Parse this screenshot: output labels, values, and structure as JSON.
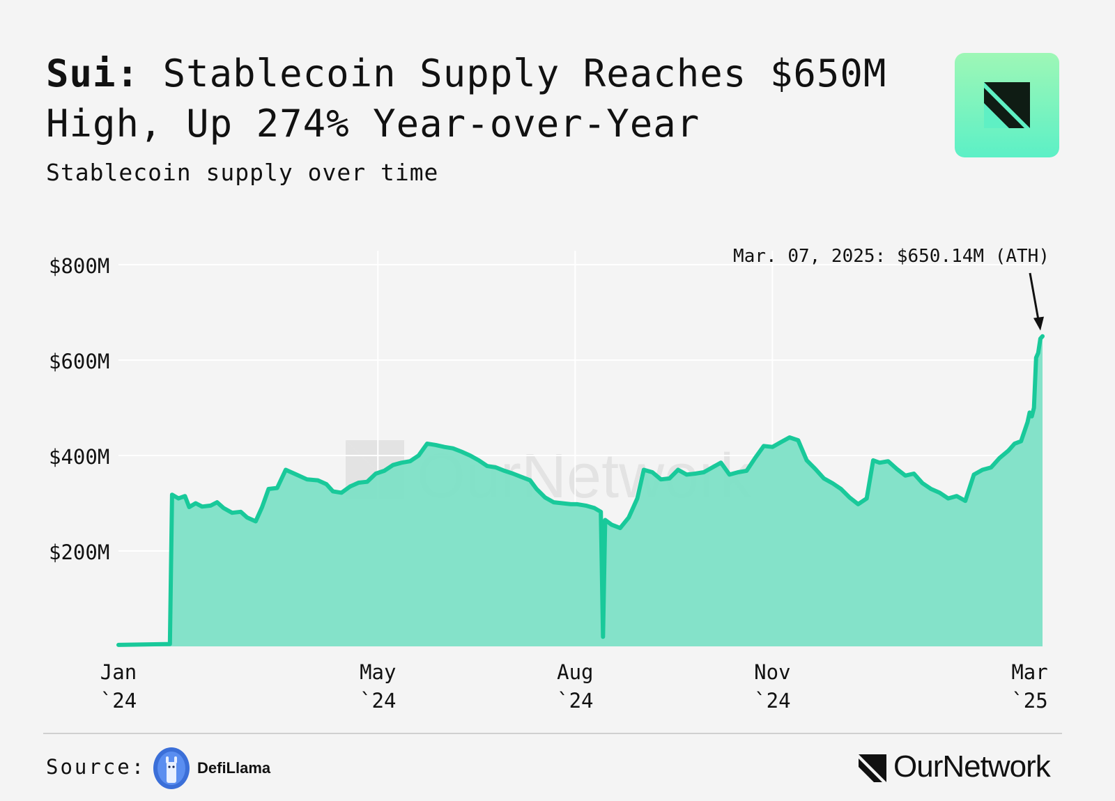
{
  "header": {
    "title_bold": "Sui:",
    "title_rest": "Stablecoin Supply Reaches $650M High, Up 274% Year-over-Year",
    "subtitle": "Stablecoin supply over time"
  },
  "footer": {
    "source_label": "Source:",
    "source_name": "DefiLlama",
    "brand_name": "OurNetwork"
  },
  "watermark": "OurNetwork",
  "icons": {
    "logo_tile": "ournetwork-logo-icon",
    "source": "defillama-llama-icon",
    "brand": "ournetwork-mark-icon"
  },
  "colors": {
    "line": "#19c99a",
    "fill": "#7de0c6",
    "background": "#f4f4f4",
    "grid": "#ffffff",
    "logo_tile": "#7ff5c0"
  },
  "chart_data": {
    "type": "area",
    "x_axis": {
      "min": "2024-01-01",
      "max": "2025-03-07",
      "ticks": [
        {
          "date": "2024-01-01",
          "line1": "Jan",
          "line2": "`24"
        },
        {
          "date": "2024-05-01",
          "line1": "May",
          "line2": "`24"
        },
        {
          "date": "2024-08-01",
          "line1": "Aug",
          "line2": "`24"
        },
        {
          "date": "2024-11-01",
          "line1": "Nov",
          "line2": "`24"
        },
        {
          "date": "2025-03-01",
          "line1": "Mar",
          "line2": "`25"
        }
      ]
    },
    "y_axis": {
      "min": 0,
      "max": 800,
      "unit": "M USD",
      "ticks": [
        {
          "value": 200,
          "label": "$200M"
        },
        {
          "value": 400,
          "label": "$400M"
        },
        {
          "value": 600,
          "label": "$600M"
        },
        {
          "value": 800,
          "label": "$800M"
        }
      ]
    },
    "grid": true,
    "annotation": {
      "text": "Mar. 07, 2025: $650.14M (ATH)",
      "date": "2025-03-07",
      "value": 650.14
    },
    "series": [
      {
        "points": [
          [
            "2024-01-01",
            3
          ],
          [
            "2024-01-25",
            5
          ],
          [
            "2024-01-26",
            318
          ],
          [
            "2024-01-29",
            310
          ],
          [
            "2024-02-01",
            315
          ],
          [
            "2024-02-03",
            292
          ],
          [
            "2024-02-06",
            300
          ],
          [
            "2024-02-09",
            293
          ],
          [
            "2024-02-13",
            295
          ],
          [
            "2024-02-16",
            302
          ],
          [
            "2024-02-19",
            290
          ],
          [
            "2024-02-23",
            280
          ],
          [
            "2024-02-27",
            282
          ],
          [
            "2024-03-01",
            270
          ],
          [
            "2024-03-05",
            262
          ],
          [
            "2024-03-08",
            292
          ],
          [
            "2024-03-11",
            330
          ],
          [
            "2024-03-15",
            332
          ],
          [
            "2024-03-19",
            370
          ],
          [
            "2024-03-24",
            360
          ],
          [
            "2024-03-29",
            350
          ],
          [
            "2024-04-03",
            348
          ],
          [
            "2024-04-07",
            340
          ],
          [
            "2024-04-10",
            325
          ],
          [
            "2024-04-14",
            322
          ],
          [
            "2024-04-18",
            335
          ],
          [
            "2024-04-22",
            343
          ],
          [
            "2024-04-26",
            345
          ],
          [
            "2024-04-30",
            362
          ],
          [
            "2024-05-04",
            368
          ],
          [
            "2024-05-08",
            380
          ],
          [
            "2024-05-12",
            385
          ],
          [
            "2024-05-16",
            388
          ],
          [
            "2024-05-20",
            400
          ],
          [
            "2024-05-24",
            425
          ],
          [
            "2024-05-28",
            422
          ],
          [
            "2024-06-01",
            418
          ],
          [
            "2024-06-05",
            415
          ],
          [
            "2024-06-09",
            408
          ],
          [
            "2024-06-13",
            400
          ],
          [
            "2024-06-17",
            390
          ],
          [
            "2024-06-21",
            378
          ],
          [
            "2024-06-25",
            375
          ],
          [
            "2024-06-29",
            368
          ],
          [
            "2024-07-03",
            362
          ],
          [
            "2024-07-07",
            355
          ],
          [
            "2024-07-11",
            348
          ],
          [
            "2024-07-14",
            330
          ],
          [
            "2024-07-18",
            312
          ],
          [
            "2024-07-22",
            302
          ],
          [
            "2024-07-26",
            300
          ],
          [
            "2024-07-30",
            298
          ],
          [
            "2024-08-02",
            298
          ],
          [
            "2024-08-06",
            295
          ],
          [
            "2024-08-10",
            290
          ],
          [
            "2024-08-13",
            282
          ],
          [
            "2024-08-14",
            20
          ],
          [
            "2024-08-15",
            265
          ],
          [
            "2024-08-18",
            255
          ],
          [
            "2024-08-22",
            248
          ],
          [
            "2024-08-26",
            270
          ],
          [
            "2024-08-30",
            310
          ],
          [
            "2024-09-02",
            370
          ],
          [
            "2024-09-06",
            365
          ],
          [
            "2024-09-10",
            350
          ],
          [
            "2024-09-14",
            352
          ],
          [
            "2024-09-18",
            370
          ],
          [
            "2024-09-22",
            360
          ],
          [
            "2024-09-26",
            362
          ],
          [
            "2024-09-30",
            365
          ],
          [
            "2024-10-04",
            375
          ],
          [
            "2024-10-08",
            385
          ],
          [
            "2024-10-12",
            360
          ],
          [
            "2024-10-16",
            365
          ],
          [
            "2024-10-20",
            368
          ],
          [
            "2024-10-24",
            395
          ],
          [
            "2024-10-28",
            420
          ],
          [
            "2024-11-01",
            418
          ],
          [
            "2024-11-05",
            428
          ],
          [
            "2024-11-09",
            438
          ],
          [
            "2024-11-13",
            432
          ],
          [
            "2024-11-17",
            390
          ],
          [
            "2024-11-21",
            372
          ],
          [
            "2024-11-25",
            352
          ],
          [
            "2024-11-29",
            342
          ],
          [
            "2024-12-03",
            330
          ],
          [
            "2024-12-07",
            312
          ],
          [
            "2024-12-11",
            298
          ],
          [
            "2024-12-15",
            310
          ],
          [
            "2024-12-18",
            390
          ],
          [
            "2024-12-21",
            385
          ],
          [
            "2024-12-25",
            388
          ],
          [
            "2024-12-29",
            372
          ],
          [
            "2025-01-02",
            358
          ],
          [
            "2025-01-06",
            362
          ],
          [
            "2025-01-10",
            342
          ],
          [
            "2025-01-14",
            330
          ],
          [
            "2025-01-18",
            322
          ],
          [
            "2025-01-22",
            310
          ],
          [
            "2025-01-26",
            315
          ],
          [
            "2025-01-30",
            305
          ],
          [
            "2025-02-03",
            360
          ],
          [
            "2025-02-07",
            370
          ],
          [
            "2025-02-11",
            375
          ],
          [
            "2025-02-15",
            395
          ],
          [
            "2025-02-19",
            410
          ],
          [
            "2025-02-22",
            425
          ],
          [
            "2025-02-25",
            430
          ],
          [
            "2025-02-28",
            470
          ],
          [
            "2025-03-01",
            490
          ],
          [
            "2025-03-02",
            482
          ],
          [
            "2025-03-03",
            500
          ],
          [
            "2025-03-04",
            605
          ],
          [
            "2025-03-05",
            615
          ],
          [
            "2025-03-06",
            645
          ],
          [
            "2025-03-07",
            650.14
          ]
        ]
      }
    ]
  }
}
